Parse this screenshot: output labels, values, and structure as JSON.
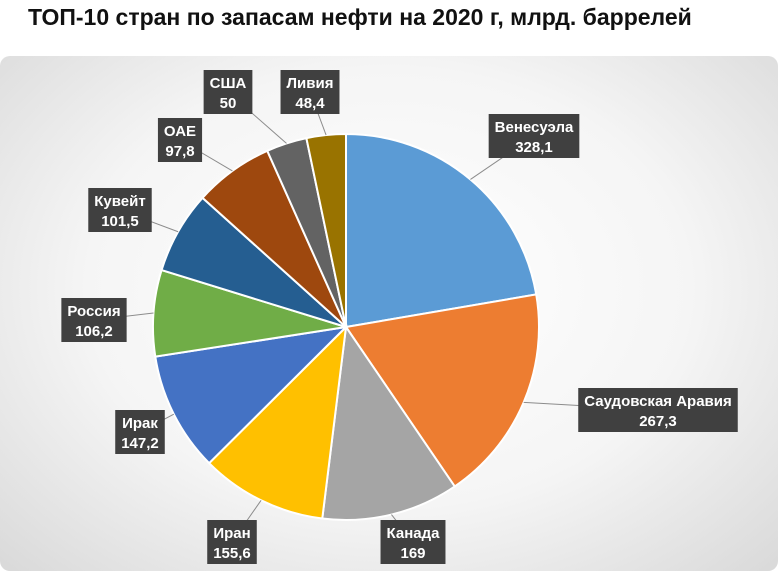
{
  "title": "ТОП-10 стран по запасам нефти на 2020 г, млрд. баррелей",
  "chart_data": {
    "type": "pie",
    "slices": [
      {
        "label": "Венесуэла",
        "value_text": "328,1",
        "value": 328.1,
        "color": "#5b9bd5"
      },
      {
        "label": "Саудовская Аравия",
        "value_text": "267,3",
        "value": 267.3,
        "color": "#ed7d31"
      },
      {
        "label": "Канада",
        "value_text": "169",
        "value": 169,
        "color": "#a5a5a5"
      },
      {
        "label": "Иран",
        "value_text": "155,6",
        "value": 155.6,
        "color": "#ffc000"
      },
      {
        "label": "Ирак",
        "value_text": "147,2",
        "value": 147.2,
        "color": "#4472c4"
      },
      {
        "label": "Россия",
        "value_text": "106,2",
        "value": 106.2,
        "color": "#70ad47"
      },
      {
        "label": "Кувейт",
        "value_text": "101,5",
        "value": 101.5,
        "color": "#255e91"
      },
      {
        "label": "ОАЕ",
        "value_text": "97,8",
        "value": 97.8,
        "color": "#9e480e"
      },
      {
        "label": "США",
        "value_text": "50",
        "value": 50,
        "color": "#636363"
      },
      {
        "label": "Ливия",
        "value_text": "48,4",
        "value": 48.4,
        "color": "#997300"
      }
    ],
    "legend": "none",
    "label_box_color": "#404040"
  }
}
